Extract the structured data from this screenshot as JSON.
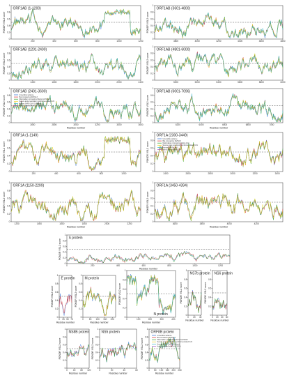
{
  "palette": {
    "disorder_blue": "#2f6fd6",
    "disorder_red": "#d62728",
    "disorder_green": "#2ca02c",
    "disorder_yellow": "#e7d322",
    "disorder_cyan": "#36b6c9",
    "disorder_black": "#222222",
    "disorder_purple": "#9a4fc2",
    "threshold": "#555555"
  },
  "chart_data": [
    {
      "id": "orf1ab-1",
      "type": "line",
      "title": "ORF1AB (1-1200)",
      "ylabel": "PONDR VSL2 score",
      "xlabel": "",
      "xlim": [
        1,
        1200
      ],
      "ylim": [
        0,
        1
      ],
      "xticks": [
        200,
        400,
        600,
        800,
        1000,
        1200
      ],
      "yticks": [
        0,
        0.2,
        0.4,
        0.6,
        0.8,
        1
      ],
      "threshold": 0.5,
      "series_count": 5
    },
    {
      "id": "orf1ab-4",
      "type": "line",
      "title": "ORF1AB (3601-4800)",
      "ylabel": "PONDR VSL2 score",
      "xlabel": "",
      "xlim": [
        3601,
        4800
      ],
      "ylim": [
        0,
        1
      ],
      "xticks": [
        3800,
        4000,
        4200,
        4400,
        4600,
        4800
      ],
      "yticks": [
        0,
        0.2,
        0.4,
        0.6,
        0.8,
        1
      ],
      "threshold": 0.5,
      "series_count": 5
    },
    {
      "id": "orf1ab-2",
      "type": "line",
      "title": "ORF1AB (1201-2400)",
      "ylabel": "PONDR VSL2 score",
      "xlabel": "",
      "xlim": [
        1201,
        2400
      ],
      "ylim": [
        0,
        1
      ],
      "xticks": [
        1400,
        1600,
        1800,
        2000,
        2200,
        2400
      ],
      "yticks": [
        0,
        0.2,
        0.4,
        0.6,
        0.8,
        1
      ],
      "threshold": 0.5,
      "series_count": 5
    },
    {
      "id": "orf1ab-5",
      "type": "line",
      "title": "ORF1AB (4801-6000)",
      "ylabel": "PONDR VSL2 score",
      "xlabel": "",
      "xlim": [
        4801,
        6000
      ],
      "ylim": [
        0,
        1
      ],
      "xticks": [
        5000,
        5200,
        5400,
        5600,
        5800,
        6000
      ],
      "yticks": [
        0,
        0.2,
        0.4,
        0.6,
        0.8,
        1
      ],
      "threshold": 0.5,
      "series_count": 5
    },
    {
      "id": "orf1ab-3",
      "type": "line",
      "title": "ORF1AB (2401-3600)",
      "ylabel": "PONDR VSL2 score",
      "xlabel": "Residue number",
      "xlim": [
        2401,
        3600
      ],
      "ylim": [
        0,
        1
      ],
      "xticks": [
        2600,
        2800,
        3000,
        3200,
        3400,
        3600
      ],
      "yticks": [
        0,
        0.2,
        0.4,
        0.6,
        0.8,
        1
      ],
      "threshold": 0.5,
      "series_count": 5,
      "legend": [
        "Unversible variance",
        "Bat coronavirus RaTG13",
        "Mammalian coronavirus Manis-CoV/2019",
        "Severe acute respiratory syndrome-related CoV",
        "Human SARS-CoV-2 (Wuhan)",
        "Homo sapiens Beta-CoV (2019)"
      ]
    },
    {
      "id": "orf1ab-6",
      "type": "line",
      "title": "ORF1AB (6001-7096)",
      "ylabel": "PONDR VSL2 score",
      "xlabel": "Residue number",
      "xlim": [
        6001,
        7096
      ],
      "ylim": [
        0,
        1
      ],
      "xticks": [
        6200,
        6400,
        6600,
        6800,
        7000,
        7200
      ],
      "yticks": [
        0,
        0.2,
        0.4,
        0.6,
        0.8,
        1
      ],
      "threshold": 0.5,
      "series_count": 5
    },
    {
      "id": "orf1a-1",
      "type": "line",
      "title": "ORF1A (1-1149)",
      "ylabel": "PONDR VSL2 score",
      "xlabel": "",
      "xlim": [
        1,
        1149
      ],
      "ylim": [
        0,
        1
      ],
      "xticks": [
        200,
        400,
        600,
        800,
        1000
      ],
      "yticks": [
        0,
        0.2,
        0.4,
        0.6,
        0.8,
        1
      ],
      "threshold": 0.5,
      "series_count": 4
    },
    {
      "id": "orf1a-3",
      "type": "line",
      "title": "ORF1A (2300-3449)",
      "ylabel": "PONDR VSL2 score",
      "xlabel": "",
      "xlim": [
        2300,
        3449
      ],
      "ylim": [
        0,
        1
      ],
      "xticks": [
        2400,
        2600,
        2800,
        3000,
        3200,
        3400
      ],
      "yticks": [
        0,
        0.2,
        0.4,
        0.6,
        0.8,
        1
      ],
      "threshold": 0.5,
      "series_count": 4,
      "legend": [
        "Unversible variance",
        "Bat coronavirus RaTG13",
        "Mammalian coronavirus Manis-CoV",
        "Severe acute respiratory syndrome-related CoV",
        "Human SARS-CoV-2",
        "Homo sapiens Beta-CoV"
      ]
    },
    {
      "id": "orf1a-2",
      "type": "line",
      "title": "ORF1A (1150-2299)",
      "ylabel": "PONDR VSL2 score",
      "xlabel": "Residue number",
      "xlim": [
        1150,
        2299
      ],
      "ylim": [
        0,
        1
      ],
      "xticks": [
        1200,
        1400,
        1600,
        1800,
        2000,
        2200
      ],
      "yticks": [
        0,
        0.2,
        0.4,
        0.6,
        0.8,
        1
      ],
      "threshold": 0.5,
      "series_count": 4
    },
    {
      "id": "orf1a-4",
      "type": "line",
      "title": "ORF1A (3450-4394)",
      "ylabel": "PONDR VSL2 score",
      "xlabel": "Residue number",
      "xlim": [
        3450,
        4394
      ],
      "ylim": [
        0,
        1
      ],
      "xticks": [
        3600,
        3800,
        4000,
        4200
      ],
      "yticks": [
        0,
        0.2,
        0.4,
        0.6,
        0.8,
        1
      ],
      "threshold": 0.5,
      "series_count": 4
    },
    {
      "id": "s-protein",
      "type": "line",
      "title": "S protein",
      "ylabel": "PONDR VSL2 score",
      "xlabel": "Residue number",
      "xlim": [
        0,
        1273
      ],
      "ylim": [
        0,
        1
      ],
      "xticks": [
        0,
        200,
        400,
        600,
        800,
        1000,
        1200
      ],
      "yticks": [
        0,
        0.2,
        0.4,
        0.6,
        0.8,
        1
      ],
      "threshold": 0.5,
      "series_count": 3
    },
    {
      "id": "e-protein",
      "type": "line",
      "title": "E protein",
      "ylabel": "PONDR VSL2 score",
      "xlabel": "Residue number",
      "xlim": [
        0,
        75
      ],
      "ylim": [
        0,
        1
      ],
      "xticks": [
        0,
        25,
        50,
        75
      ],
      "yticks": [
        0,
        0.2,
        0.4,
        0.6,
        0.8,
        1
      ],
      "threshold": 0.5,
      "series_count": 2
    },
    {
      "id": "m-protein",
      "type": "line",
      "title": "M protein",
      "ylabel": "PONDR VSL2 score",
      "xlabel": "Residue number",
      "xlim": [
        0,
        222
      ],
      "ylim": [
        0,
        1
      ],
      "xticks": [
        0,
        50,
        100,
        150,
        200
      ],
      "yticks": [
        0,
        0.2,
        0.4,
        0.6,
        0.8,
        1
      ],
      "threshold": 0.5,
      "series_count": 4
    },
    {
      "id": "n-protein",
      "type": "line",
      "title": "N protein",
      "ylabel": "PONDR VSL2 score",
      "xlabel": "Residue number",
      "xlim": [
        0,
        419
      ],
      "ylim": [
        0,
        1
      ],
      "xticks": [
        0,
        100,
        200,
        300,
        400
      ],
      "yticks": [
        0,
        0.2,
        0.4,
        0.6,
        0.8,
        1
      ],
      "threshold": 0.5,
      "series_count": 5,
      "title_pos": "bottom"
    },
    {
      "id": "ns7b-protein",
      "type": "line",
      "title": "NS7b protein",
      "ylabel": "PONDR VSL2 score",
      "xlabel": "Residue number",
      "xlim": [
        0,
        43
      ],
      "ylim": [
        0,
        1
      ],
      "xticks": [
        0,
        20,
        40
      ],
      "yticks": [
        0,
        0.2,
        0.4,
        0.6,
        0.8,
        1
      ],
      "threshold": 0.5,
      "series_count": 3
    },
    {
      "id": "ns6-protein",
      "type": "line",
      "title": "NS6 protein",
      "ylabel": "PONDR VSL2 score",
      "xlabel": "Residue number",
      "xlim": [
        0,
        61
      ],
      "ylim": [
        0,
        1
      ],
      "xticks": [
        0,
        20,
        40,
        60
      ],
      "yticks": [
        0,
        0.2,
        0.4,
        0.6,
        0.8,
        1
      ],
      "threshold": 0.5,
      "series_count": 3
    },
    {
      "id": "ns8b-protein",
      "type": "line",
      "title": "NS8B protein",
      "ylabel": "PONDR VSL2 score",
      "xlabel": "Residue number",
      "xlim": [
        0,
        121
      ],
      "ylim": [
        0,
        1
      ],
      "xticks": [
        0,
        40,
        80,
        120
      ],
      "yticks": [
        0,
        0.2,
        0.4,
        0.6,
        0.8,
        1
      ],
      "threshold": 0.5,
      "series_count": 3
    },
    {
      "id": "ns5-protein",
      "type": "line",
      "title": "NS5 protein",
      "ylabel": "PONDR VSL2 score",
      "xlabel": "Residue number",
      "xlim": [
        0,
        60
      ],
      "ylim": [
        0,
        1
      ],
      "xticks": [
        0,
        20,
        40,
        60
      ],
      "yticks": [
        0,
        0.2,
        0.4,
        0.6,
        0.8,
        1
      ],
      "threshold": 0.5,
      "series_count": 3
    },
    {
      "id": "orf8b-protein",
      "type": "line",
      "title": "ORF8B protein",
      "ylabel": "PONDR VSL2 score",
      "xlabel": "Residue number",
      "xlim": [
        0,
        250
      ],
      "ylim": [
        0,
        1
      ],
      "xticks": [
        0,
        50,
        100,
        150,
        200,
        250
      ],
      "yticks": [
        0,
        0.2,
        0.4,
        0.6,
        0.8,
        1
      ],
      "threshold": 0.5,
      "series_count": 5,
      "legend": [
        "Unversible variance",
        "Bat coronavirus RaTG13",
        "Mammalian coronavirus Manis-CoV/2019",
        "Severe acute respiratory syndrome-related CoV",
        "Human SARS-CoV-2 (Wuhan)",
        "Homo sapiens Beta-CoV (2019)"
      ]
    }
  ]
}
